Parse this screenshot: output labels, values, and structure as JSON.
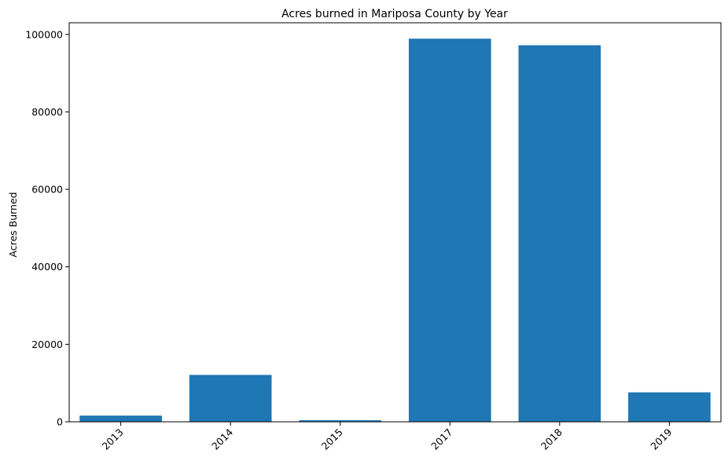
{
  "chart_data": {
    "type": "bar",
    "title": "Acres burned in Mariposa County by Year",
    "xlabel": "",
    "ylabel": "Acres Burned",
    "categories": [
      "2013",
      "2014",
      "2015",
      "2017",
      "2018",
      "2019"
    ],
    "values": [
      1600,
      12100,
      400,
      98900,
      97200,
      7600
    ],
    "ylim": [
      0,
      103000
    ],
    "yticks": [
      0,
      20000,
      40000,
      60000,
      80000,
      100000
    ],
    "ytick_labels": [
      "0",
      "20000",
      "40000",
      "60000",
      "80000",
      "100000"
    ],
    "bar_color": "#1f77b4",
    "grid": false,
    "x_tick_rotation": -45
  }
}
